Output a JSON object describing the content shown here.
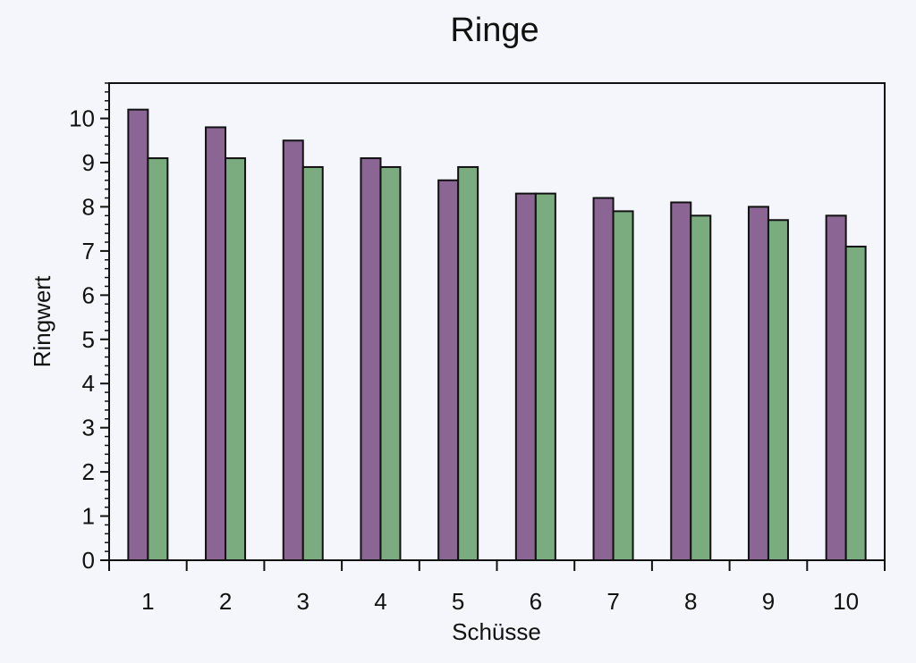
{
  "chart_data": {
    "type": "bar",
    "title": "Ringe",
    "xlabel": "Schüsse",
    "ylabel": "Ringwert",
    "categories": [
      "1",
      "2",
      "3",
      "4",
      "5",
      "6",
      "7",
      "8",
      "9",
      "10"
    ],
    "series": [
      {
        "values": [
          10.2,
          9.8,
          9.5,
          9.1,
          8.6,
          8.3,
          8.2,
          8.1,
          8.0,
          7.8
        ],
        "color": "#8b6594"
      },
      {
        "values": [
          9.1,
          9.1,
          8.9,
          8.9,
          8.9,
          8.3,
          7.9,
          7.8,
          7.7,
          7.1
        ],
        "color": "#7aac80"
      }
    ],
    "ylim": [
      0,
      10.8
    ],
    "yticks": [
      "0",
      "1",
      "2",
      "3",
      "4",
      "5",
      "6",
      "7",
      "8",
      "9",
      "10"
    ],
    "grid": false,
    "legend": "none"
  }
}
